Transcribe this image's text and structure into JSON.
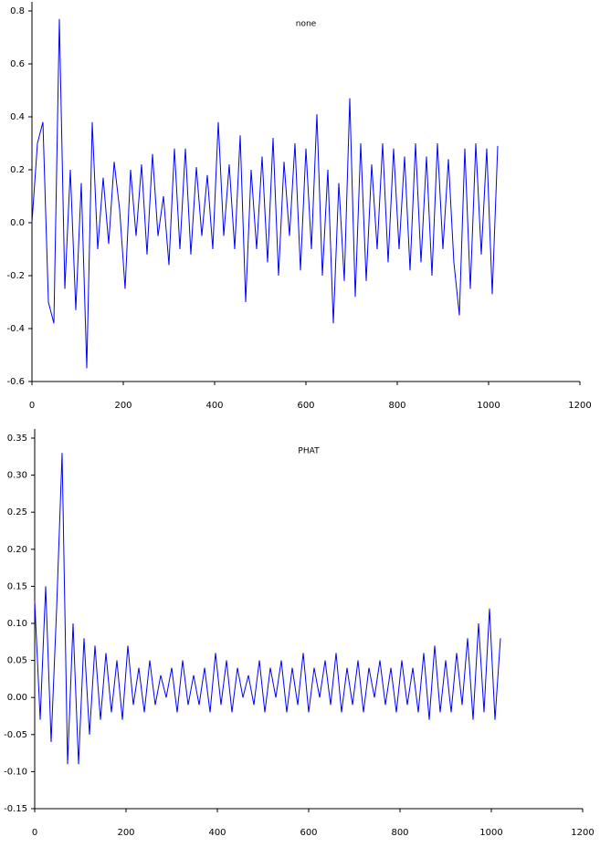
{
  "chart_data": [
    {
      "type": "line",
      "title": "none",
      "color": "#0000ff",
      "x": [
        0,
        12,
        24,
        36,
        48,
        60,
        72,
        84,
        96,
        108,
        120,
        132,
        144,
        156,
        168,
        180,
        192,
        204,
        216,
        228,
        240,
        252,
        264,
        276,
        288,
        300,
        312,
        324,
        336,
        348,
        360,
        372,
        384,
        396,
        408,
        420,
        432,
        444,
        456,
        468,
        480,
        492,
        504,
        516,
        528,
        540,
        552,
        564,
        576,
        588,
        600,
        612,
        624,
        636,
        648,
        660,
        672,
        684,
        696,
        708,
        720,
        732,
        744,
        756,
        768,
        780,
        792,
        804,
        816,
        828,
        840,
        852,
        864,
        876,
        888,
        900,
        912,
        924,
        936,
        948,
        960,
        972,
        984,
        996,
        1008,
        1020
      ],
      "values": [
        0.0,
        0.3,
        0.38,
        -0.3,
        -0.38,
        0.77,
        -0.25,
        0.2,
        -0.33,
        0.15,
        -0.55,
        0.38,
        -0.1,
        0.17,
        -0.08,
        0.23,
        0.05,
        -0.25,
        0.2,
        -0.05,
        0.22,
        -0.12,
        0.26,
        -0.05,
        0.1,
        -0.16,
        0.28,
        -0.1,
        0.28,
        -0.12,
        0.21,
        -0.05,
        0.18,
        -0.1,
        0.38,
        -0.05,
        0.22,
        -0.1,
        0.33,
        -0.3,
        0.2,
        -0.1,
        0.25,
        -0.15,
        0.32,
        -0.2,
        0.23,
        -0.05,
        0.3,
        -0.18,
        0.28,
        -0.1,
        0.41,
        -0.2,
        0.2,
        -0.38,
        0.15,
        -0.22,
        0.47,
        -0.28,
        0.3,
        -0.22,
        0.22,
        -0.1,
        0.3,
        -0.15,
        0.28,
        -0.1,
        0.25,
        -0.18,
        0.3,
        -0.15,
        0.25,
        -0.2,
        0.3,
        -0.1,
        0.24,
        -0.15,
        -0.35,
        0.28,
        -0.25,
        0.3,
        -0.12,
        0.28,
        -0.27,
        0.29
      ],
      "xlim": [
        0,
        1200
      ],
      "xticks": [
        0,
        200,
        400,
        600,
        800,
        1000,
        1200
      ],
      "ylim": [
        -0.6,
        0.8
      ],
      "yticks": [
        -0.6,
        -0.4,
        -0.2,
        {
          "value": 0,
          "label": "0.0"
        },
        0.2,
        0.4,
        0.6,
        0.8
      ]
    },
    {
      "type": "line",
      "title": "PHAT",
      "color": "#0000ff",
      "x": [
        0,
        12,
        24,
        36,
        48,
        60,
        72,
        84,
        96,
        108,
        120,
        132,
        144,
        156,
        168,
        180,
        192,
        204,
        216,
        228,
        240,
        252,
        264,
        276,
        288,
        300,
        312,
        324,
        336,
        348,
        360,
        372,
        384,
        396,
        408,
        420,
        432,
        444,
        456,
        468,
        480,
        492,
        504,
        516,
        528,
        540,
        552,
        564,
        576,
        588,
        600,
        612,
        624,
        636,
        648,
        660,
        672,
        684,
        696,
        708,
        720,
        732,
        744,
        756,
        768,
        780,
        792,
        804,
        816,
        828,
        840,
        852,
        864,
        876,
        888,
        900,
        912,
        924,
        936,
        948,
        960,
        972,
        984,
        996,
        1008,
        1020
      ],
      "values": [
        0.13,
        -0.03,
        0.15,
        -0.06,
        0.12,
        0.33,
        -0.09,
        0.1,
        -0.09,
        0.08,
        -0.05,
        0.07,
        -0.03,
        0.06,
        -0.02,
        0.05,
        -0.03,
        0.07,
        -0.01,
        0.04,
        -0.02,
        0.05,
        -0.01,
        0.03,
        0.0,
        0.04,
        -0.02,
        0.05,
        -0.01,
        0.03,
        -0.01,
        0.04,
        -0.02,
        0.06,
        -0.01,
        0.05,
        -0.02,
        0.04,
        0.0,
        0.03,
        -0.01,
        0.05,
        -0.02,
        0.04,
        0.0,
        0.05,
        -0.02,
        0.04,
        -0.01,
        0.06,
        -0.02,
        0.04,
        0.0,
        0.05,
        -0.01,
        0.06,
        -0.02,
        0.04,
        -0.01,
        0.05,
        -0.02,
        0.04,
        0.0,
        0.05,
        -0.01,
        0.04,
        -0.02,
        0.05,
        -0.01,
        0.04,
        -0.02,
        0.06,
        -0.03,
        0.07,
        -0.02,
        0.05,
        -0.02,
        0.06,
        -0.01,
        0.08,
        -0.03,
        0.1,
        -0.02,
        0.12,
        -0.03,
        0.08
      ],
      "xlim": [
        0,
        1200
      ],
      "xticks": [
        0,
        200,
        400,
        600,
        800,
        1000,
        1200
      ],
      "ylim": [
        -0.15,
        0.35
      ],
      "yticks": [
        -0.15,
        {
          "value": -0.1,
          "label": "-0.10"
        },
        -0.05,
        {
          "value": 0,
          "label": "0.00"
        },
        0.05,
        {
          "value": 0.1,
          "label": "0.10"
        },
        0.15,
        {
          "value": 0.2,
          "label": "0.20"
        },
        0.25,
        {
          "value": 0.3,
          "label": "0.30"
        },
        0.35
      ]
    }
  ]
}
